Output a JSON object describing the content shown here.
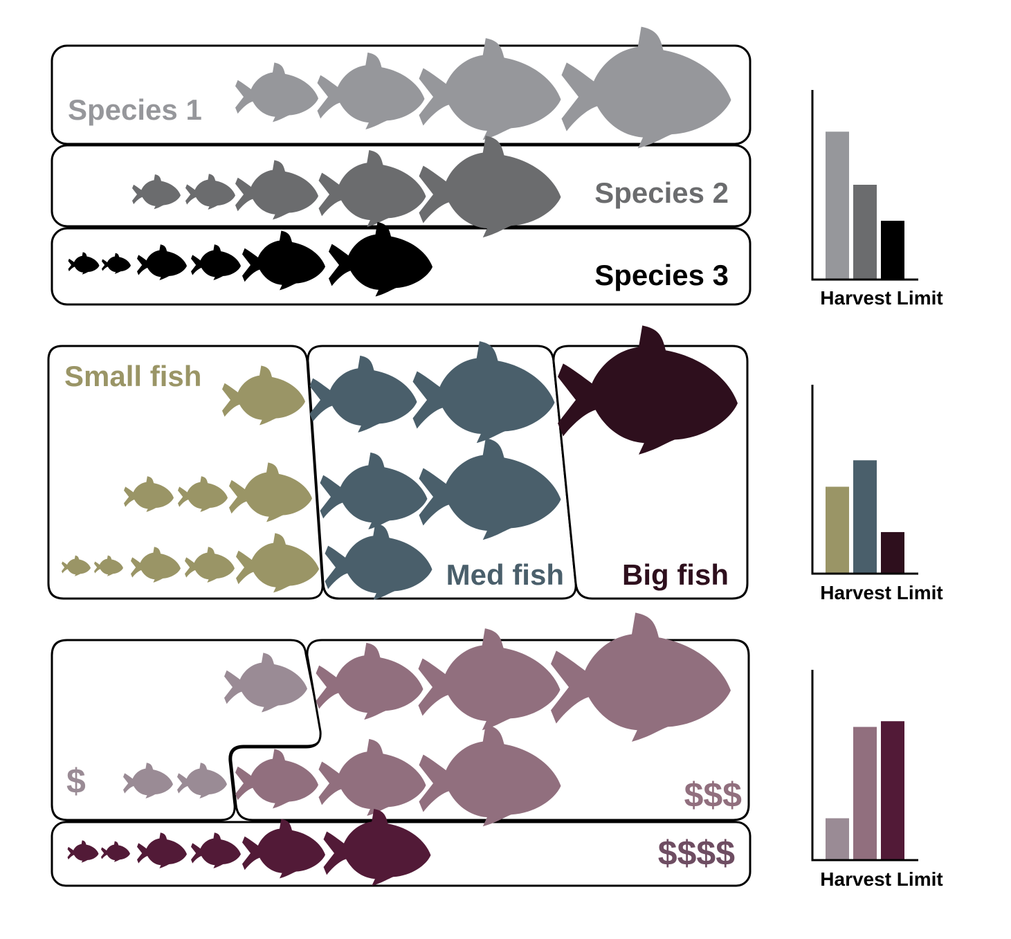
{
  "colors": {
    "sp1": "#96979b",
    "sp2": "#6b6c6e",
    "sp3": "#000000",
    "small": "#9a9566",
    "med": "#4a5f6b",
    "big": "#2e0f1d",
    "cheap": "#9a8b95",
    "mid": "#916f7e",
    "pricey": "#521a37",
    "outline": "#000000"
  },
  "icons": {
    "fish": "fish-icon"
  },
  "panel1": {
    "labels": {
      "species1": "Species 1",
      "species2": "Species 2",
      "species3": "Species 3"
    }
  },
  "panel2": {
    "labels": {
      "small": "Small fish",
      "med": "Med fish",
      "big": "Big fish"
    }
  },
  "panel3": {
    "labels": {
      "cheap": "$",
      "mid": "$$$",
      "pricey": "$$$$"
    }
  },
  "chart_data": [
    {
      "type": "bar",
      "categories": [
        "Species 1",
        "Species 2",
        "Species 3"
      ],
      "values": [
        0.78,
        0.5,
        0.31
      ],
      "ylim": [
        0,
        1
      ],
      "xlabel": "Harvest Limit",
      "ylabel": "",
      "colors": [
        "#96979b",
        "#6b6c6e",
        "#000000"
      ]
    },
    {
      "type": "bar",
      "categories": [
        "Small fish",
        "Med fish",
        "Big fish"
      ],
      "values": [
        0.46,
        0.6,
        0.22
      ],
      "ylim": [
        0,
        1
      ],
      "xlabel": "Harvest Limit",
      "ylabel": "",
      "colors": [
        "#9a9566",
        "#4a5f6b",
        "#2e0f1d"
      ]
    },
    {
      "type": "bar",
      "categories": [
        "$",
        "$$$",
        "$$$$"
      ],
      "values": [
        0.22,
        0.7,
        0.73
      ],
      "ylim": [
        0,
        1
      ],
      "xlabel": "Harvest Limit",
      "ylabel": "",
      "colors": [
        "#9a8b95",
        "#916f7e",
        "#521a37"
      ]
    }
  ]
}
